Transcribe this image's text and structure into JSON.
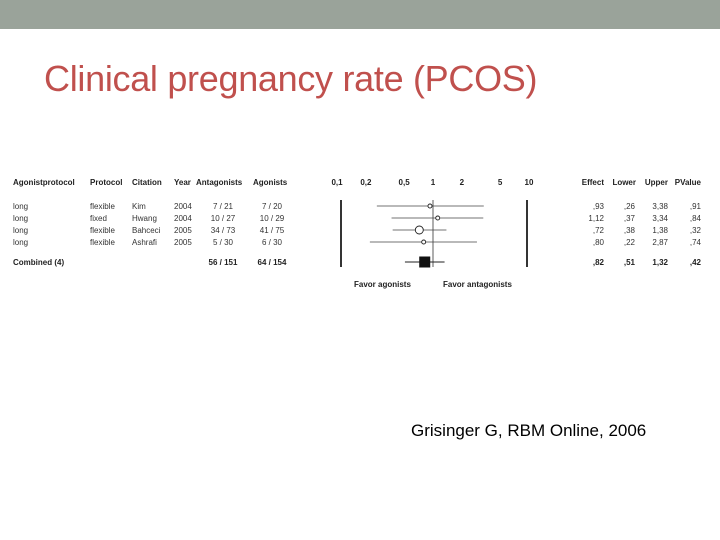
{
  "slide": {
    "title": "Clinical pregnancy rate (PCOS)",
    "citation": "Grisinger G, RBM Online, 2006",
    "title_color": "#c0504d",
    "topbar_color": "#9aa39a"
  },
  "chart_data": {
    "type": "table",
    "subtype": "forest-plot",
    "columns": [
      "Agonistprotocol",
      "Protocol",
      "Citation",
      "Year",
      "Antagonists",
      "Agonists",
      "Effect",
      "Lower",
      "Upper",
      "PValue"
    ],
    "rows": [
      {
        "agonistprotocol": "long",
        "protocol": "flexible",
        "citation": "Kim",
        "year": "2004",
        "antagonists": "7 / 21",
        "agonists": "7 / 20",
        "effect": ",93",
        "lower": ",26",
        "upper": "3,38",
        "pvalue": ",91",
        "effect_value": 0.93,
        "lower_value": 0.26,
        "upper_value": 3.38,
        "marker": "circle-small"
      },
      {
        "agonistprotocol": "long",
        "protocol": "fixed",
        "citation": "Hwang",
        "year": "2004",
        "antagonists": "10 / 27",
        "agonists": "10 / 29",
        "effect": "1,12",
        "lower": ",37",
        "upper": "3,34",
        "pvalue": ",84",
        "effect_value": 1.12,
        "lower_value": 0.37,
        "upper_value": 3.34,
        "marker": "circle-small"
      },
      {
        "agonistprotocol": "long",
        "protocol": "flexible",
        "citation": "Bahceci",
        "year": "2005",
        "antagonists": "34 / 73",
        "agonists": "41 / 75",
        "effect": ",72",
        "lower": ",38",
        "upper": "1,38",
        "pvalue": ",32",
        "effect_value": 0.72,
        "lower_value": 0.38,
        "upper_value": 1.38,
        "marker": "circle-large"
      },
      {
        "agonistprotocol": "long",
        "protocol": "flexible",
        "citation": "Ashrafi",
        "year": "2005",
        "antagonists": "5 / 30",
        "agonists": "6 / 30",
        "effect": ",80",
        "lower": ",22",
        "upper": "2,87",
        "pvalue": ",74",
        "effect_value": 0.8,
        "lower_value": 0.22,
        "upper_value": 2.87,
        "marker": "circle-small"
      }
    ],
    "combined": {
      "label": "Combined (4)",
      "antagonists": "56 / 151",
      "agonists": "64 / 154",
      "effect": ",82",
      "lower": ",51",
      "upper": "1,32",
      "pvalue": ",42",
      "effect_value": 0.82,
      "lower_value": 0.51,
      "upper_value": 1.32,
      "marker": "square"
    },
    "x_axis": {
      "scale": "log",
      "ticks": [
        0.1,
        0.2,
        0.5,
        1,
        2,
        5,
        10
      ],
      "tick_labels": [
        "0,1",
        "0,2",
        "0,5",
        "1",
        "2",
        "5",
        "10"
      ],
      "xlim": [
        0.1,
        10
      ]
    },
    "footer_left": "Favor agonists",
    "footer_right": "Favor antagonists"
  }
}
